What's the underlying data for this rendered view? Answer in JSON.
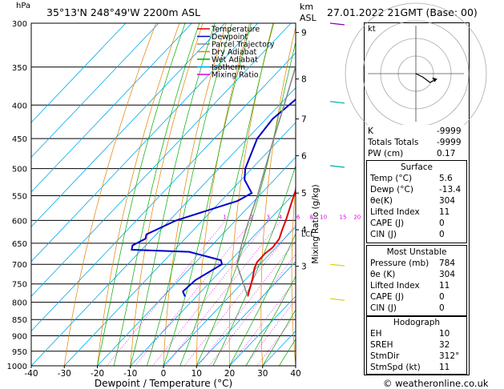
{
  "header": {
    "hpa_label": "hPa",
    "location": "35°13'N  248°49'W  2200m  ASL",
    "km_label": "km",
    "asl_label": "ASL",
    "datetime": "27.01.2022  21GMT  (Base: 00)"
  },
  "legend": [
    {
      "label": "Temperature",
      "color": "#e00000"
    },
    {
      "label": "Dewpoint",
      "color": "#0000cc"
    },
    {
      "label": "Parcel Trajectory",
      "color": "#888888"
    },
    {
      "label": "Dry Adiabat",
      "color": "#e08000"
    },
    {
      "label": "Wet Adiabat",
      "color": "#00aa00"
    },
    {
      "label": "Isotherm",
      "color": "#00aaee"
    },
    {
      "label": "Mixing Ratio",
      "color": "#dd00dd"
    }
  ],
  "axis": {
    "xlabel": "Dewpoint / Temperature (°C)",
    "mixing_label": "Mixing Ratio (g/kg)",
    "pressure_ticks": [
      "300",
      "350",
      "400",
      "450",
      "500",
      "550",
      "600",
      "650",
      "700",
      "750",
      "800",
      "850",
      "900",
      "950",
      "1000"
    ],
    "temp_ticks": [
      "-40",
      "-30",
      "-20",
      "-10",
      "0",
      "10",
      "20",
      "30",
      "40"
    ],
    "km_ticks": [
      "9",
      "8",
      "7",
      "6",
      "5",
      "4",
      "3"
    ],
    "lcl_label": "LCL",
    "mixing_ratio_labels": [
      "1",
      "2",
      "3",
      "4",
      "6",
      "8",
      "10",
      "15",
      "20",
      "25"
    ]
  },
  "chart_data": {
    "type": "line",
    "title": "35°13'N  248°49'W  2200m  ASL",
    "xlabel": "Dewpoint / Temperature (°C)",
    "ylabel": "hPa",
    "xlim": [
      -40,
      40
    ],
    "ylim": [
      1000,
      300
    ],
    "y_scale": "log",
    "series": [
      {
        "name": "Temperature",
        "points": [
          [
            784,
            5.6
          ],
          [
            770,
            4.5
          ],
          [
            740,
            2.2
          ],
          [
            710,
            -0.5
          ],
          [
            695,
            -1.5
          ],
          [
            675,
            -1.6
          ],
          [
            660,
            -1.0
          ],
          [
            640,
            -1.5
          ],
          [
            620,
            -3.2
          ],
          [
            600,
            -4.8
          ],
          [
            550,
            -9.5
          ],
          [
            500,
            -14.5
          ],
          [
            450,
            -20.5
          ],
          [
            400,
            -27.5
          ],
          [
            350,
            -36.0
          ],
          [
            300,
            -45.0
          ]
        ]
      },
      {
        "name": "Dewpoint",
        "points": [
          [
            784,
            -13.4
          ],
          [
            770,
            -15.5
          ],
          [
            740,
            -15.0
          ],
          [
            700,
            -11.5
          ],
          [
            690,
            -13.0
          ],
          [
            670,
            -25.0
          ],
          [
            665,
            -43.0
          ],
          [
            655,
            -44.0
          ],
          [
            640,
            -42.0
          ],
          [
            630,
            -43.0
          ],
          [
            600,
            -38.0
          ],
          [
            560,
            -25.0
          ],
          [
            545,
            -23.0
          ],
          [
            520,
            -29.0
          ],
          [
            500,
            -32.0
          ],
          [
            450,
            -37.0
          ],
          [
            420,
            -38.0
          ],
          [
            380,
            -36.0
          ],
          [
            350,
            -37.0
          ],
          [
            340,
            -40.0
          ],
          [
            322,
            -40.0
          ],
          [
            315,
            -35.0
          ],
          [
            300,
            -36.0
          ]
        ]
      },
      {
        "name": "Parcel Trajectory",
        "points": [
          [
            784,
            5.6
          ],
          [
            700,
            -7.0
          ],
          [
            650,
            -11.5
          ],
          [
            600,
            -16.0
          ],
          [
            550,
            -20.5
          ],
          [
            500,
            -26.0
          ],
          [
            450,
            -32.0
          ],
          [
            400,
            -38.5
          ],
          [
            350,
            -46.0
          ],
          [
            300,
            -54.0
          ]
        ]
      }
    ],
    "hodograph": {
      "label": "kt",
      "rings": [
        "10",
        "20",
        "30",
        "40"
      ],
      "points": [
        [
          0,
          0
        ],
        [
          4,
          -2
        ],
        [
          8,
          -5
        ],
        [
          12,
          -3
        ]
      ]
    },
    "indices": {
      "K": "-9999",
      "Totals Totals": "-9999",
      "PW (cm)": "0.17"
    },
    "surface": {
      "title": "Surface",
      "rows": [
        [
          "Temp (°C)",
          "5.6"
        ],
        [
          "Dewp (°C)",
          "-13.4"
        ],
        [
          "θe(K)",
          "304"
        ],
        [
          "Lifted Index",
          "11"
        ],
        [
          "CAPE (J)",
          "0"
        ],
        [
          "CIN (J)",
          "0"
        ]
      ]
    },
    "most_unstable": {
      "title": "Most Unstable",
      "rows": [
        [
          "Pressure (mb)",
          "784"
        ],
        [
          "θe (K)",
          "304"
        ],
        [
          "Lifted Index",
          "11"
        ],
        [
          "CAPE (J)",
          "0"
        ],
        [
          "CIN (J)",
          "0"
        ]
      ]
    },
    "hodograph_indices": {
      "title": "Hodograph",
      "rows": [
        [
          "EH",
          "10"
        ],
        [
          "SREH",
          "32"
        ],
        [
          "StmDir",
          "312°"
        ],
        [
          "StmSpd (kt)",
          "11"
        ]
      ]
    }
  },
  "footer": {
    "copyright": "© weatheronline.co.uk"
  }
}
